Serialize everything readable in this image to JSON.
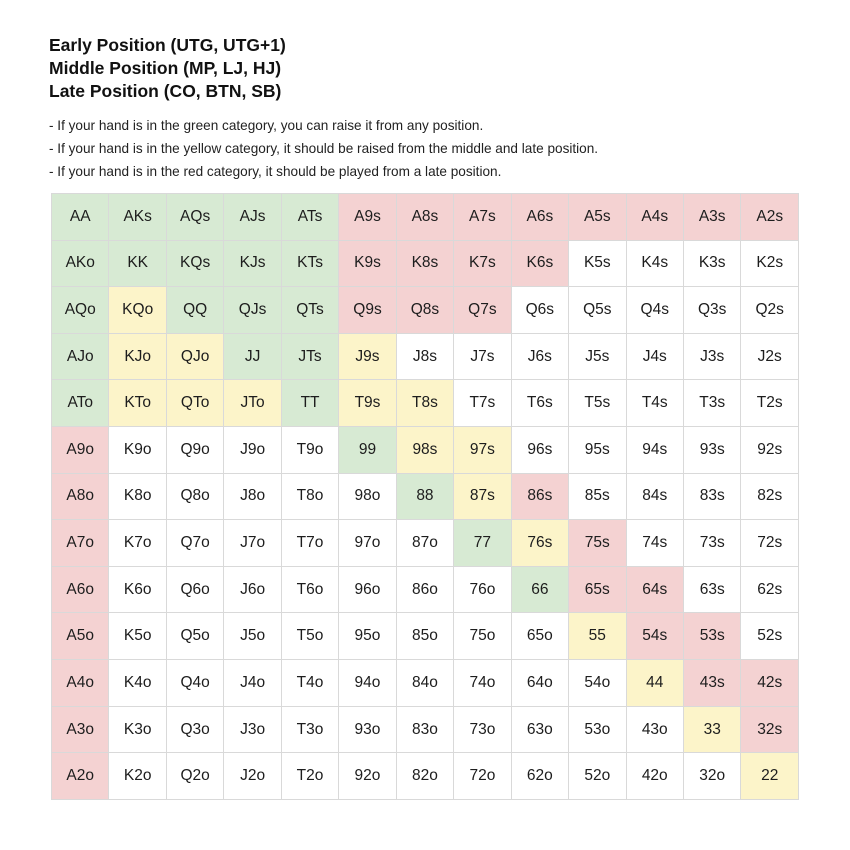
{
  "titles": [
    "Early Position (UTG, UTG+1)",
    "Middle Position (MP, LJ, HJ)",
    "Late Position (CO, BTN, SB)"
  ],
  "notes": [
    "- If your hand is in the green category, you can raise it from any position.",
    "- If your hand is in the yellow category, it should be raised from the middle and late position.",
    "- If your hand is in the red category, it should be played from a late position."
  ],
  "colors": {
    "green": "#d7ead3",
    "yellow": "#fcf4c9",
    "red": "#f4d2d2",
    "white": "#ffffff"
  },
  "grid": [
    [
      {
        "hand": "AA",
        "category": "green"
      },
      {
        "hand": "AKs",
        "category": "green"
      },
      {
        "hand": "AQs",
        "category": "green"
      },
      {
        "hand": "AJs",
        "category": "green"
      },
      {
        "hand": "ATs",
        "category": "green"
      },
      {
        "hand": "A9s",
        "category": "red"
      },
      {
        "hand": "A8s",
        "category": "red"
      },
      {
        "hand": "A7s",
        "category": "red"
      },
      {
        "hand": "A6s",
        "category": "red"
      },
      {
        "hand": "A5s",
        "category": "red"
      },
      {
        "hand": "A4s",
        "category": "red"
      },
      {
        "hand": "A3s",
        "category": "red"
      },
      {
        "hand": "A2s",
        "category": "red"
      }
    ],
    [
      {
        "hand": "AKo",
        "category": "green"
      },
      {
        "hand": "KK",
        "category": "green"
      },
      {
        "hand": "KQs",
        "category": "green"
      },
      {
        "hand": "KJs",
        "category": "green"
      },
      {
        "hand": "KTs",
        "category": "green"
      },
      {
        "hand": "K9s",
        "category": "red"
      },
      {
        "hand": "K8s",
        "category": "red"
      },
      {
        "hand": "K7s",
        "category": "red"
      },
      {
        "hand": "K6s",
        "category": "red"
      },
      {
        "hand": "K5s",
        "category": "white"
      },
      {
        "hand": "K4s",
        "category": "white"
      },
      {
        "hand": "K3s",
        "category": "white"
      },
      {
        "hand": "K2s",
        "category": "white"
      }
    ],
    [
      {
        "hand": "AQo",
        "category": "green"
      },
      {
        "hand": "KQo",
        "category": "yellow"
      },
      {
        "hand": "QQ",
        "category": "green"
      },
      {
        "hand": "QJs",
        "category": "green"
      },
      {
        "hand": "QTs",
        "category": "green"
      },
      {
        "hand": "Q9s",
        "category": "red"
      },
      {
        "hand": "Q8s",
        "category": "red"
      },
      {
        "hand": "Q7s",
        "category": "red"
      },
      {
        "hand": "Q6s",
        "category": "white"
      },
      {
        "hand": "Q5s",
        "category": "white"
      },
      {
        "hand": "Q4s",
        "category": "white"
      },
      {
        "hand": "Q3s",
        "category": "white"
      },
      {
        "hand": "Q2s",
        "category": "white"
      }
    ],
    [
      {
        "hand": "AJo",
        "category": "green"
      },
      {
        "hand": "KJo",
        "category": "yellow"
      },
      {
        "hand": "QJo",
        "category": "yellow"
      },
      {
        "hand": "JJ",
        "category": "green"
      },
      {
        "hand": "JTs",
        "category": "green"
      },
      {
        "hand": "J9s",
        "category": "yellow"
      },
      {
        "hand": "J8s",
        "category": "white"
      },
      {
        "hand": "J7s",
        "category": "white"
      },
      {
        "hand": "J6s",
        "category": "white"
      },
      {
        "hand": "J5s",
        "category": "white"
      },
      {
        "hand": "J4s",
        "category": "white"
      },
      {
        "hand": "J3s",
        "category": "white"
      },
      {
        "hand": "J2s",
        "category": "white"
      }
    ],
    [
      {
        "hand": "ATo",
        "category": "green"
      },
      {
        "hand": "KTo",
        "category": "yellow"
      },
      {
        "hand": "QTo",
        "category": "yellow"
      },
      {
        "hand": "JTo",
        "category": "yellow"
      },
      {
        "hand": "TT",
        "category": "green"
      },
      {
        "hand": "T9s",
        "category": "yellow"
      },
      {
        "hand": "T8s",
        "category": "yellow"
      },
      {
        "hand": "T7s",
        "category": "white"
      },
      {
        "hand": "T6s",
        "category": "white"
      },
      {
        "hand": "T5s",
        "category": "white"
      },
      {
        "hand": "T4s",
        "category": "white"
      },
      {
        "hand": "T3s",
        "category": "white"
      },
      {
        "hand": "T2s",
        "category": "white"
      }
    ],
    [
      {
        "hand": "A9o",
        "category": "red"
      },
      {
        "hand": "K9o",
        "category": "white"
      },
      {
        "hand": "Q9o",
        "category": "white"
      },
      {
        "hand": "J9o",
        "category": "white"
      },
      {
        "hand": "T9o",
        "category": "white"
      },
      {
        "hand": "99",
        "category": "green"
      },
      {
        "hand": "98s",
        "category": "yellow"
      },
      {
        "hand": "97s",
        "category": "yellow"
      },
      {
        "hand": "96s",
        "category": "white"
      },
      {
        "hand": "95s",
        "category": "white"
      },
      {
        "hand": "94s",
        "category": "white"
      },
      {
        "hand": "93s",
        "category": "white"
      },
      {
        "hand": "92s",
        "category": "white"
      }
    ],
    [
      {
        "hand": "A8o",
        "category": "red"
      },
      {
        "hand": "K8o",
        "category": "white"
      },
      {
        "hand": "Q8o",
        "category": "white"
      },
      {
        "hand": "J8o",
        "category": "white"
      },
      {
        "hand": "T8o",
        "category": "white"
      },
      {
        "hand": "98o",
        "category": "white"
      },
      {
        "hand": "88",
        "category": "green"
      },
      {
        "hand": "87s",
        "category": "yellow"
      },
      {
        "hand": "86s",
        "category": "red"
      },
      {
        "hand": "85s",
        "category": "white"
      },
      {
        "hand": "84s",
        "category": "white"
      },
      {
        "hand": "83s",
        "category": "white"
      },
      {
        "hand": "82s",
        "category": "white"
      }
    ],
    [
      {
        "hand": "A7o",
        "category": "red"
      },
      {
        "hand": "K7o",
        "category": "white"
      },
      {
        "hand": "Q7o",
        "category": "white"
      },
      {
        "hand": "J7o",
        "category": "white"
      },
      {
        "hand": "T7o",
        "category": "white"
      },
      {
        "hand": "97o",
        "category": "white"
      },
      {
        "hand": "87o",
        "category": "white"
      },
      {
        "hand": "77",
        "category": "green"
      },
      {
        "hand": "76s",
        "category": "yellow"
      },
      {
        "hand": "75s",
        "category": "red"
      },
      {
        "hand": "74s",
        "category": "white"
      },
      {
        "hand": "73s",
        "category": "white"
      },
      {
        "hand": "72s",
        "category": "white"
      }
    ],
    [
      {
        "hand": "A6o",
        "category": "red"
      },
      {
        "hand": "K6o",
        "category": "white"
      },
      {
        "hand": "Q6o",
        "category": "white"
      },
      {
        "hand": "J6o",
        "category": "white"
      },
      {
        "hand": "T6o",
        "category": "white"
      },
      {
        "hand": "96o",
        "category": "white"
      },
      {
        "hand": "86o",
        "category": "white"
      },
      {
        "hand": "76o",
        "category": "white"
      },
      {
        "hand": "66",
        "category": "green"
      },
      {
        "hand": "65s",
        "category": "red"
      },
      {
        "hand": "64s",
        "category": "red"
      },
      {
        "hand": "63s",
        "category": "white"
      },
      {
        "hand": "62s",
        "category": "white"
      }
    ],
    [
      {
        "hand": "A5o",
        "category": "red"
      },
      {
        "hand": "K5o",
        "category": "white"
      },
      {
        "hand": "Q5o",
        "category": "white"
      },
      {
        "hand": "J5o",
        "category": "white"
      },
      {
        "hand": "T5o",
        "category": "white"
      },
      {
        "hand": "95o",
        "category": "white"
      },
      {
        "hand": "85o",
        "category": "white"
      },
      {
        "hand": "75o",
        "category": "white"
      },
      {
        "hand": "65o",
        "category": "white"
      },
      {
        "hand": "55",
        "category": "yellow"
      },
      {
        "hand": "54s",
        "category": "red"
      },
      {
        "hand": "53s",
        "category": "red"
      },
      {
        "hand": "52s",
        "category": "white"
      }
    ],
    [
      {
        "hand": "A4o",
        "category": "red"
      },
      {
        "hand": "K4o",
        "category": "white"
      },
      {
        "hand": "Q4o",
        "category": "white"
      },
      {
        "hand": "J4o",
        "category": "white"
      },
      {
        "hand": "T4o",
        "category": "white"
      },
      {
        "hand": "94o",
        "category": "white"
      },
      {
        "hand": "84o",
        "category": "white"
      },
      {
        "hand": "74o",
        "category": "white"
      },
      {
        "hand": "64o",
        "category": "white"
      },
      {
        "hand": "54o",
        "category": "white"
      },
      {
        "hand": "44",
        "category": "yellow"
      },
      {
        "hand": "43s",
        "category": "red"
      },
      {
        "hand": "42s",
        "category": "red"
      }
    ],
    [
      {
        "hand": "A3o",
        "category": "red"
      },
      {
        "hand": "K3o",
        "category": "white"
      },
      {
        "hand": "Q3o",
        "category": "white"
      },
      {
        "hand": "J3o",
        "category": "white"
      },
      {
        "hand": "T3o",
        "category": "white"
      },
      {
        "hand": "93o",
        "category": "white"
      },
      {
        "hand": "83o",
        "category": "white"
      },
      {
        "hand": "73o",
        "category": "white"
      },
      {
        "hand": "63o",
        "category": "white"
      },
      {
        "hand": "53o",
        "category": "white"
      },
      {
        "hand": "43o",
        "category": "white"
      },
      {
        "hand": "33",
        "category": "yellow"
      },
      {
        "hand": "32s",
        "category": "red"
      }
    ],
    [
      {
        "hand": "A2o",
        "category": "red"
      },
      {
        "hand": "K2o",
        "category": "white"
      },
      {
        "hand": "Q2o",
        "category": "white"
      },
      {
        "hand": "J2o",
        "category": "white"
      },
      {
        "hand": "T2o",
        "category": "white"
      },
      {
        "hand": "92o",
        "category": "white"
      },
      {
        "hand": "82o",
        "category": "white"
      },
      {
        "hand": "72o",
        "category": "white"
      },
      {
        "hand": "62o",
        "category": "white"
      },
      {
        "hand": "52o",
        "category": "white"
      },
      {
        "hand": "42o",
        "category": "white"
      },
      {
        "hand": "32o",
        "category": "white"
      },
      {
        "hand": "22",
        "category": "yellow"
      }
    ]
  ]
}
